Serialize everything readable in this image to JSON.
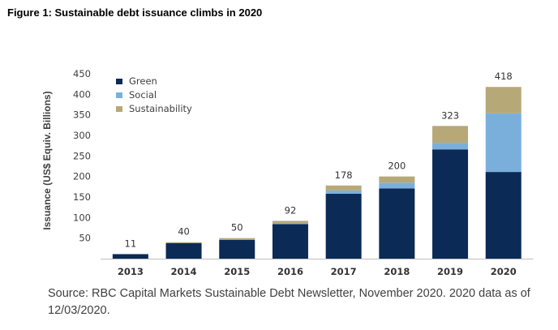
{
  "figure_title": "Figure 1: Sustainable debt issuance climbs in 2020",
  "source_text": "Source: RBC Capital Markets Sustainable Debt Newsletter, November 2020. 2020 data as of 12/03/2020.",
  "colors": {
    "Green": "#0b2a55",
    "Social": "#7aafdc",
    "Sustainability": "#b7a878"
  },
  "chart_data": {
    "type": "bar",
    "stacked": true,
    "title": "",
    "xlabel": "",
    "ylabel": "Issuance (US$ Equiv. Billions)",
    "ylim": [
      0,
      450
    ],
    "yticks": [
      50,
      100,
      150,
      200,
      250,
      300,
      350,
      400,
      450
    ],
    "grid": false,
    "legend_position": "top-left",
    "categories": [
      "2013",
      "2014",
      "2015",
      "2016",
      "2017",
      "2018",
      "2019",
      "2020"
    ],
    "series": [
      {
        "name": "Green",
        "values": [
          11,
          38,
          46,
          84,
          158,
          171,
          266,
          211
        ]
      },
      {
        "name": "Social",
        "values": [
          0,
          0,
          1,
          2,
          8,
          14,
          16,
          143
        ]
      },
      {
        "name": "Sustainability",
        "values": [
          0,
          2,
          3,
          6,
          12,
          15,
          41,
          64
        ]
      }
    ],
    "totals": [
      11,
      40,
      50,
      92,
      178,
      200,
      323,
      418
    ]
  }
}
